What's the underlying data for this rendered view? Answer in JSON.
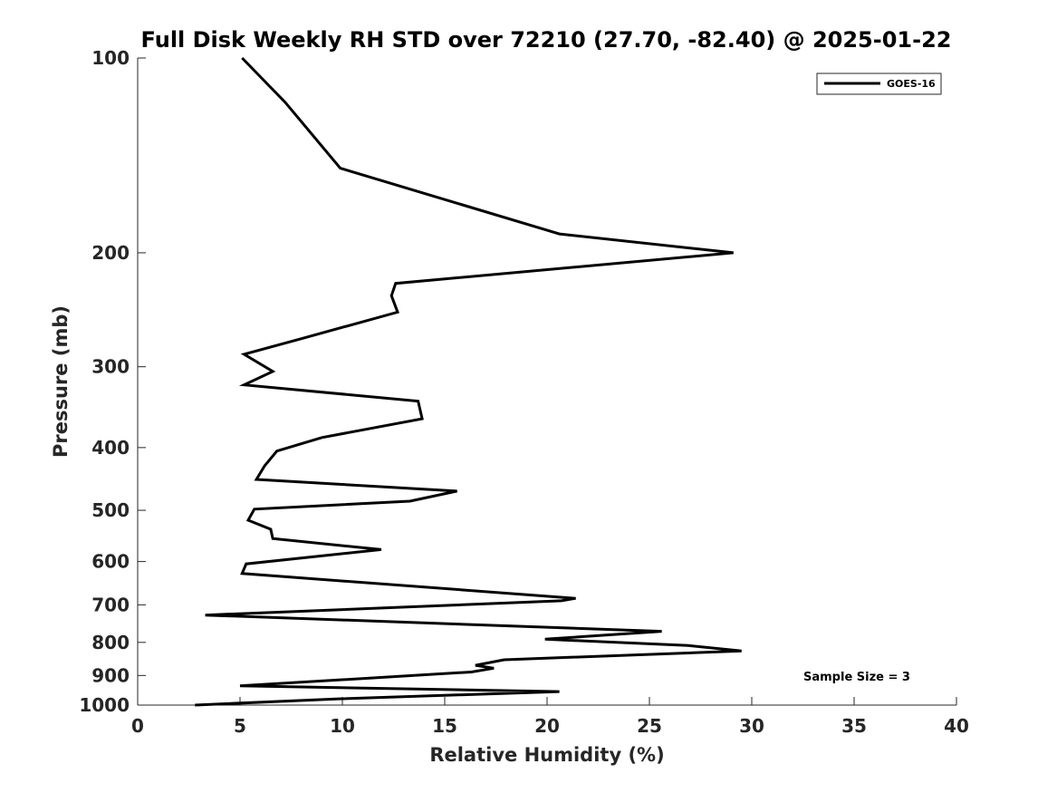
{
  "chart_data": {
    "type": "line",
    "title": "Full Disk Weekly RH STD over 72210 (27.70, -82.40) @ 2025-01-22",
    "xlabel": "Relative Humidity (%)",
    "ylabel": "Pressure (mb)",
    "xlim": [
      0,
      40
    ],
    "ylim": [
      100,
      1000
    ],
    "yscale": "log",
    "y_reversed": true,
    "x_ticks": [
      0,
      5,
      10,
      15,
      20,
      25,
      30,
      35,
      40
    ],
    "x_tick_labels": [
      "0",
      "5",
      "10",
      "15",
      "20",
      "25",
      "30",
      "35",
      "40"
    ],
    "y_ticks": [
      100,
      200,
      300,
      400,
      500,
      600,
      700,
      800,
      900,
      1000
    ],
    "y_tick_labels": [
      "100",
      "200",
      "300",
      "400",
      "500",
      "600",
      "700",
      "800",
      "900",
      "1000"
    ],
    "grid": false,
    "legend_position": "top-right",
    "annotation": "Sample Size = 3",
    "series": [
      {
        "name": "GOES-16",
        "color": "#000000",
        "x": [
          5.1,
          7.2,
          9.9,
          20.6,
          29.1,
          12.6,
          12.4,
          12.7,
          7.9,
          5.2,
          6.6,
          5.2,
          13.7,
          13.9,
          9.0,
          6.8,
          6.2,
          5.8,
          15.6,
          13.3,
          5.7,
          5.4,
          6.5,
          6.6,
          11.9,
          5.3,
          5.1,
          21.4,
          20.7,
          3.3,
          25.6,
          19.9,
          26.9,
          29.5,
          17.9,
          16.5,
          17.4,
          16.3,
          5.0,
          20.6,
          9.8,
          2.8
        ],
        "y": [
          100,
          117,
          148,
          187,
          200,
          223,
          233,
          247,
          272,
          287,
          305,
          320,
          339,
          361,
          386,
          405,
          427,
          448,
          467,
          484,
          498,
          518,
          535,
          553,
          575,
          605,
          626,
          684,
          690,
          726,
          769,
          791,
          809,
          825,
          851,
          868,
          877,
          889,
          934,
          953,
          978,
          1000
        ]
      }
    ]
  }
}
